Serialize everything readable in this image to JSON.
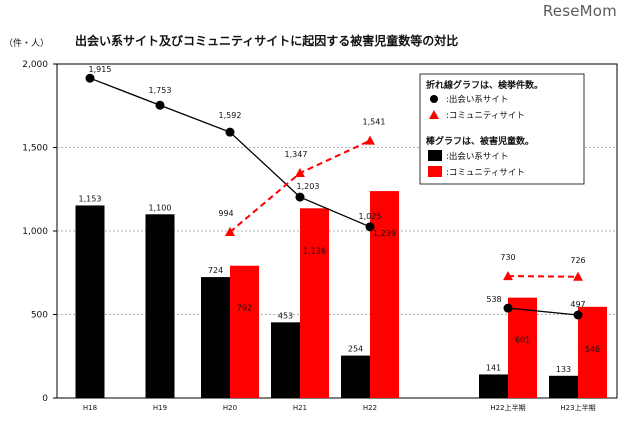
{
  "header": {
    "logo_text": "ReseMom",
    "title": "出会い系サイト及びコミュニティサイトに起因する被害児童数等の対比",
    "unit": "（件・人）"
  },
  "colors": {
    "deai": "#000000",
    "community": "#ff0000",
    "grid": "#999999",
    "axis": "#000000"
  },
  "chart_data": {
    "type": "bar",
    "categories": [
      "H18",
      "H19",
      "H20",
      "H21",
      "H22",
      "H22上半期",
      "H23上半期"
    ],
    "ylim": [
      0,
      2000
    ],
    "yticks": [
      0,
      500,
      1000,
      1500,
      2000
    ],
    "ytick_labels": [
      "0",
      "500",
      "1,000",
      "1,500",
      "2,000"
    ],
    "grid": true,
    "bar_series": [
      {
        "name": "出会い系サイト",
        "color": "#000000",
        "values": [
          1153,
          1100,
          724,
          453,
          254,
          141,
          133
        ],
        "labels": [
          "1,153",
          "1,100",
          "724",
          "453",
          "254",
          "141",
          "133"
        ]
      },
      {
        "name": "コミュニティサイト",
        "color": "#ff0000",
        "values": [
          null,
          null,
          792,
          1136,
          1239,
          601,
          546
        ],
        "labels": [
          "",
          "",
          "792",
          "1,136",
          "1,239",
          "601",
          "546"
        ]
      }
    ],
    "line_series": [
      {
        "name": "出会い系サイト",
        "color": "#000000",
        "marker": "circle",
        "dashed": false,
        "segments": [
          [
            0,
            4
          ],
          [
            5,
            6
          ]
        ],
        "values": [
          1915,
          1753,
          1592,
          1203,
          1025,
          538,
          497
        ],
        "labels": [
          "1,915",
          "1,753",
          "1,592",
          "1,203",
          "1,025",
          "538",
          "497"
        ]
      },
      {
        "name": "コミュニティサイト",
        "color": "#ff0000",
        "marker": "triangle",
        "dashed": true,
        "segments": [
          [
            2,
            4
          ],
          [
            5,
            6
          ]
        ],
        "values": [
          null,
          null,
          994,
          1347,
          1541,
          730,
          726
        ],
        "labels": [
          "",
          "",
          "994",
          "1,347",
          "1,541",
          "730",
          "726"
        ]
      }
    ],
    "legend": {
      "position": "top-right",
      "line_title": "折れ線グラフは、検挙件数。",
      "line_items": [
        {
          "marker": "circle",
          "color": "#000000",
          "label": ":出会い系サイト"
        },
        {
          "marker": "triangle",
          "color": "#ff0000",
          "label": ":コミュニティサイト"
        }
      ],
      "bar_title": "棒グラフは、被害児童数。",
      "bar_items": [
        {
          "marker": "square",
          "color": "#000000",
          "label": ":出会い系サイト"
        },
        {
          "marker": "square",
          "color": "#ff0000",
          "label": ":コミュニティサイト"
        }
      ]
    }
  }
}
